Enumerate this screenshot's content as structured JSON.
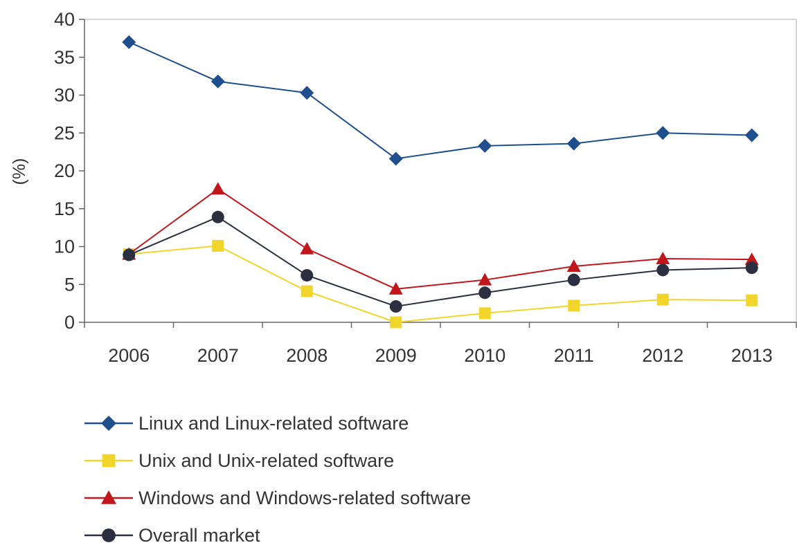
{
  "chart_data": {
    "type": "line",
    "title": "",
    "xlabel": "",
    "ylabel": "(%)",
    "ylim": [
      0,
      40
    ],
    "yticks": [
      "0",
      "5",
      "10",
      "15",
      "20",
      "25",
      "30",
      "35",
      "40"
    ],
    "categories": [
      "2006",
      "2007",
      "2008",
      "2009",
      "2010",
      "2011",
      "2012",
      "2013"
    ],
    "grid": false,
    "legend_position": "bottom",
    "series": [
      {
        "name": "Linux and Linux-related software",
        "color": "#1f4e8c",
        "marker": "diamond",
        "values": [
          37.0,
          31.8,
          30.3,
          21.6,
          23.3,
          23.6,
          25.0,
          24.7
        ]
      },
      {
        "name": "Unix and Unix-related software",
        "color": "#f2d52a",
        "marker": "square",
        "values": [
          9.0,
          10.1,
          4.1,
          0.0,
          1.2,
          2.2,
          3.0,
          2.9
        ]
      },
      {
        "name": "Windows and Windows-related software",
        "color": "#c0171d",
        "marker": "triangle",
        "values": [
          9.0,
          17.6,
          9.7,
          4.4,
          5.6,
          7.4,
          8.4,
          8.3
        ]
      },
      {
        "name": "Overall market",
        "color": "#2b2f3f",
        "marker": "circle",
        "values": [
          8.9,
          13.9,
          6.2,
          2.1,
          3.9,
          5.6,
          6.9,
          7.2
        ]
      }
    ]
  }
}
